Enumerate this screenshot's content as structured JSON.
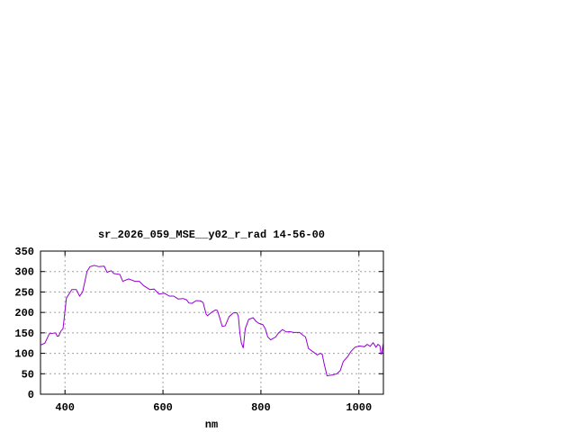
{
  "chart_data": {
    "type": "line",
    "title": "sr_2026_059_MSE__y02_r_rad 14-56-00",
    "xlabel": "nm",
    "ylabel": "",
    "xlim": [
      350,
      1050
    ],
    "ylim": [
      0,
      350
    ],
    "xticks": [
      400,
      600,
      800,
      1000
    ],
    "yticks": [
      0,
      50,
      100,
      150,
      200,
      250,
      300,
      350
    ],
    "grid": true,
    "line_color": "#9400d3",
    "series": [
      {
        "x": [
          350,
          359,
          368,
          381,
          384,
          387,
          392,
          396,
          403,
          414,
          423,
          430,
          436,
          445,
          451,
          460,
          469,
          480,
          486,
          494,
          500,
          512,
          518,
          530,
          543,
          552,
          561,
          573,
          582,
          592,
          603,
          613,
          622,
          631,
          641,
          648,
          653,
          659,
          668,
          677,
          682,
          688,
          691,
          699,
          707,
          711,
          715,
          721,
          727,
          735,
          744,
          751,
          754,
          757,
          760,
          764,
          768,
          775,
          784,
          790,
          796,
          804,
          809,
          814,
          820,
          830,
          836,
          844,
          852,
          859,
          867,
          879,
          885,
          891,
          897,
          907,
          915,
          921,
          925,
          929,
          935,
          946,
          955,
          962,
          968,
          977,
          984,
          992,
          1001,
          1011,
          1017,
          1023,
          1029,
          1035,
          1039,
          1043,
          1045,
          1047,
          1049
        ],
        "y": [
          120,
          125,
          148,
          150,
          142,
          142,
          155,
          160,
          235,
          256,
          256,
          240,
          250,
          300,
          312,
          315,
          312,
          313,
          298,
          302,
          295,
          293,
          276,
          282,
          276,
          276,
          265,
          256,
          257,
          245,
          247,
          240,
          240,
          233,
          234,
          231,
          223,
          222,
          229,
          228,
          224,
          196,
          192,
          200,
          206,
          205,
          190,
          166,
          167,
          190,
          199,
          199,
          190,
          150,
          125,
          113,
          160,
          183,
          187,
          178,
          173,
          170,
          160,
          140,
          133,
          140,
          150,
          158,
          152,
          153,
          151,
          151,
          145,
          140,
          112,
          103,
          96,
          100,
          98,
          75,
          45,
          47,
          50,
          58,
          80,
          92,
          105,
          115,
          118,
          116,
          122,
          117,
          126,
          115,
          122,
          118,
          98,
          100,
          122
        ]
      }
    ]
  }
}
